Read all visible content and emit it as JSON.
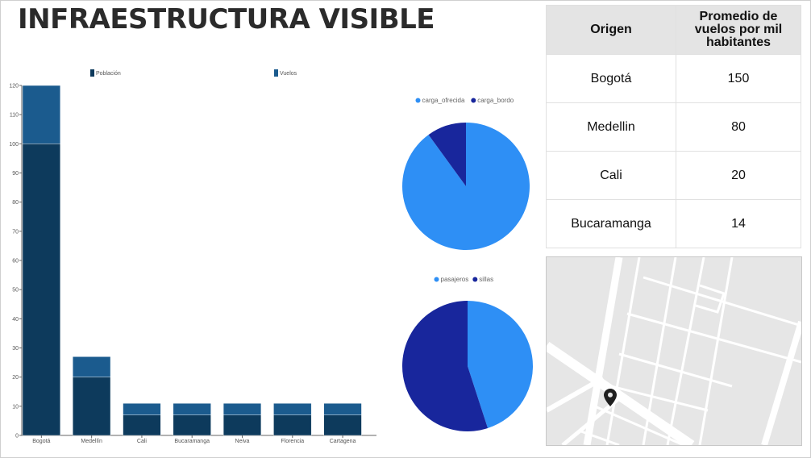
{
  "dashboard": {
    "title": "INFRAESTRUCTURA VISIBLE"
  },
  "chart_data": [
    {
      "type": "bar",
      "stacked": true,
      "categories": [
        "Bogotá",
        "Medellín",
        "Cali",
        "Bucaramanga",
        "Neiva",
        "Florencia",
        "Cartagena"
      ],
      "series": [
        {
          "name": "Población",
          "values": [
            100,
            20,
            7,
            7,
            7,
            7,
            7
          ],
          "color": "#0d3a5c"
        },
        {
          "name": "Vuelos",
          "values": [
            20,
            7,
            4,
            4,
            4,
            4,
            4
          ],
          "color": "#1b5b8e"
        }
      ],
      "ylim": [
        0,
        120
      ],
      "yticks": [
        0,
        10,
        20,
        30,
        40,
        50,
        60,
        70,
        80,
        90,
        100,
        110,
        120
      ],
      "legend": "top"
    },
    {
      "type": "pie",
      "series": [
        {
          "name": "carga_ofrecida",
          "value": 90,
          "color": "#2e8ff5"
        },
        {
          "name": "carga_bordo",
          "value": 10,
          "color": "#18269c"
        }
      ],
      "legend": "top"
    },
    {
      "type": "pie",
      "series": [
        {
          "name": "pasajeros",
          "value": 45,
          "color": "#2e8ff5"
        },
        {
          "name": "sillas",
          "value": 55,
          "color": "#18269c"
        }
      ],
      "legend": "top"
    },
    {
      "type": "table",
      "columns": [
        "Origen",
        "Promedio de vuelos por mil habitantes"
      ],
      "rows": [
        {
          "origen": "Bogotá",
          "promedio": "150"
        },
        {
          "origen": "Medellin",
          "promedio": "80"
        },
        {
          "origen": "Cali",
          "promedio": "20"
        },
        {
          "origen": "Bucaramanga",
          "promedio": "14"
        }
      ]
    }
  ],
  "map": {
    "marker_icon": "map-pin-icon"
  }
}
